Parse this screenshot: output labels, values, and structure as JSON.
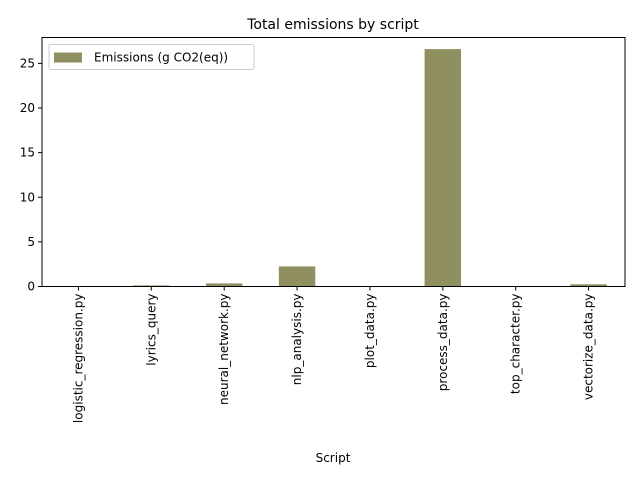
{
  "chart_data": {
    "type": "bar",
    "title": "Total emissions by script",
    "xlabel": "Script",
    "ylabel": "",
    "categories": [
      "logistic_regression.py",
      "lyrics_query",
      "neural_network.py",
      "nlp_analysis.py",
      "plot_data.py",
      "process_data.py",
      "top_character.py",
      "vectorize_data.py"
    ],
    "series": [
      {
        "name": "Emissions (g CO2(eq))",
        "values": [
          0.02,
          0.12,
          0.35,
          2.25,
          0.03,
          26.6,
          0.03,
          0.25
        ],
        "color": "#8f8f5f"
      }
    ],
    "ylim": [
      0,
      27.9
    ],
    "yticks": [
      0,
      5,
      10,
      15,
      20,
      25
    ],
    "ytick_labels": [
      "0",
      "5",
      "10",
      "15",
      "20",
      "25"
    ],
    "grid": false,
    "legend": "top-left"
  }
}
